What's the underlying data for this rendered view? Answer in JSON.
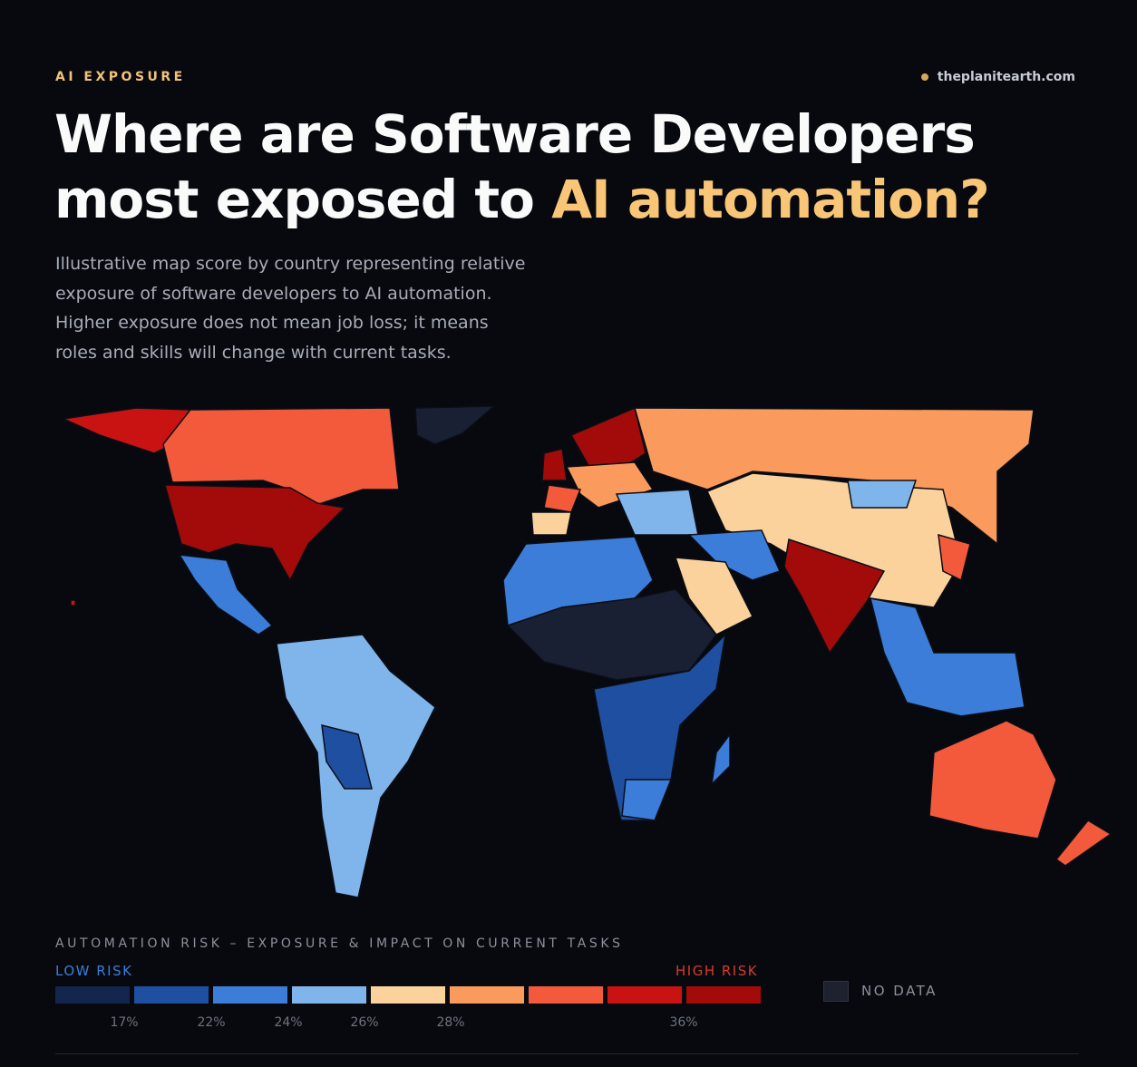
{
  "header": {
    "kicker": "AI EXPOSURE",
    "source": "theplanitearth.com",
    "title_line1": "Where are Software Developers",
    "title_line2": "most exposed to",
    "title_highlight": "AI automation?",
    "subtitle": [
      "Illustrative map score by country representing relative",
      "exposure of software developers to AI automation.",
      "Higher exposure does not mean job loss; it means",
      "roles and skills will change with current tasks."
    ]
  },
  "legend": {
    "title": "AUTOMATION RISK – EXPOSURE & IMPACT ON CURRENT TASKS",
    "low_label": "LOW RISK",
    "high_label": "HIGH RISK",
    "colors": [
      "#13264d",
      "#1f4fa0",
      "#3b7dd8",
      "#80b5ec",
      "#fbd29c",
      "#fa9a5d",
      "#f25a3b",
      "#c91212",
      "#a30b0b"
    ],
    "ticks": [
      {
        "value": 17,
        "label": "17%"
      },
      {
        "value": 22,
        "label": "22%"
      },
      {
        "value": 24,
        "label": "24%"
      },
      {
        "value": 26,
        "label": "26%"
      },
      {
        "value": 28,
        "label": "28%"
      },
      {
        "value": 36,
        "label": "36%"
      }
    ],
    "no_data_label": "NO DATA"
  }
}
